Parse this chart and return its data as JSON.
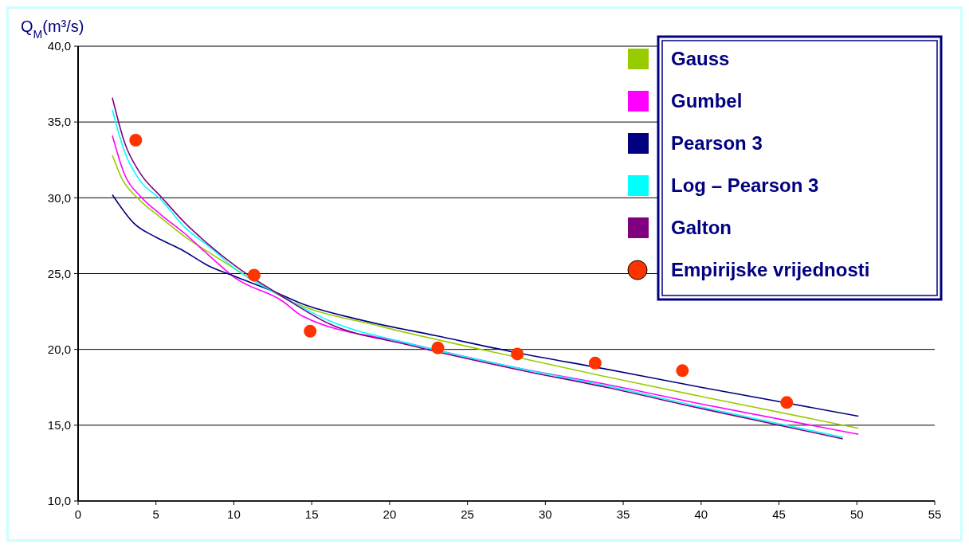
{
  "chart_data": {
    "type": "line",
    "ylabel": "Q$_{M}$(m³/s)",
    "xlim": [
      0,
      55
    ],
    "xticks": [
      0,
      5,
      10,
      15,
      20,
      25,
      30,
      35,
      40,
      45,
      50,
      55
    ],
    "ylim": [
      10,
      40
    ],
    "yticks": [
      {
        "value": 10,
        "label": "10,0"
      },
      {
        "value": 15,
        "label": "15,0"
      },
      {
        "value": 20,
        "label": "20,0"
      },
      {
        "value": 25,
        "label": "25,0"
      },
      {
        "value": 30,
        "label": "30,0"
      },
      {
        "value": 35,
        "label": "35,0"
      },
      {
        "value": 40,
        "label": "40,0"
      }
    ],
    "grid": "y",
    "legend": "top right",
    "line_style": "solid",
    "series": [
      {
        "name": "Gauss",
        "color": "#99cc00",
        "marker": "none",
        "x": [
          2.2,
          2.8,
          3.9,
          5.3,
          6.9,
          8.4,
          10.1,
          13.6,
          19.5,
          26.3,
          33.9,
          40,
          50.1
        ],
        "values": [
          32.8,
          31.3,
          29.9,
          28.7,
          27.4,
          26.4,
          25.3,
          23.2,
          21.5,
          19.9,
          18.2,
          16.9,
          14.8
        ]
      },
      {
        "name": "Gumbel",
        "color": "#ff00ff",
        "marker": "none",
        "x": [
          2.2,
          3,
          4,
          5.3,
          6.9,
          8.4,
          10.1,
          13.1,
          14.4,
          21.2,
          28.1,
          33.9,
          40,
          50.1
        ],
        "values": [
          34.1,
          31.5,
          30.1,
          28.9,
          27.6,
          26.2,
          24.7,
          23.2,
          22.2,
          20.4,
          18.8,
          17.7,
          16.4,
          14.4
        ]
      },
      {
        "name": "Pearson 3",
        "color": "#000080",
        "marker": "none",
        "x": [
          2.2,
          3.6,
          5,
          6.6,
          8.4,
          10.1,
          12.6,
          14.4,
          17.9,
          23,
          28.1,
          33.9,
          40,
          50.1
        ],
        "values": [
          30.2,
          28.3,
          27.4,
          26.6,
          25.5,
          24.8,
          23.8,
          23.0,
          22.0,
          20.9,
          19.8,
          18.7,
          17.5,
          15.6
        ]
      },
      {
        "name": "Log – Pearson 3",
        "color": "#00ffff",
        "marker": "none",
        "x": [
          2.2,
          3,
          4,
          5.3,
          6.9,
          8.4,
          10.1,
          13.1,
          16.1,
          21.2,
          28.1,
          33.9,
          40,
          49.1
        ],
        "values": [
          35.8,
          33.0,
          31.1,
          29.9,
          28.0,
          26.8,
          25.3,
          23.5,
          21.9,
          20.4,
          18.8,
          17.6,
          16.2,
          14.2
        ]
      },
      {
        "name": "Galton",
        "color": "#800080",
        "marker": "none",
        "x": [
          2.2,
          3,
          4,
          5.3,
          6.9,
          8.4,
          10.1,
          13.1,
          16.1,
          21.2,
          28.1,
          33.9,
          40,
          49.1
        ],
        "values": [
          36.6,
          33.6,
          31.6,
          30.1,
          28.3,
          26.9,
          25.5,
          23.5,
          21.7,
          20.3,
          18.7,
          17.5,
          16.1,
          14.1
        ]
      },
      {
        "name": "Empirijske vrijednosti",
        "type": "scatter",
        "color": "#ff3300",
        "marker": "circle",
        "x": [
          3.7,
          11.3,
          14.9,
          23.1,
          28.2,
          33.2,
          38.8,
          45.5
        ],
        "values": [
          33.8,
          24.9,
          21.2,
          20.1,
          19.7,
          19.1,
          18.6,
          16.5
        ]
      }
    ]
  }
}
